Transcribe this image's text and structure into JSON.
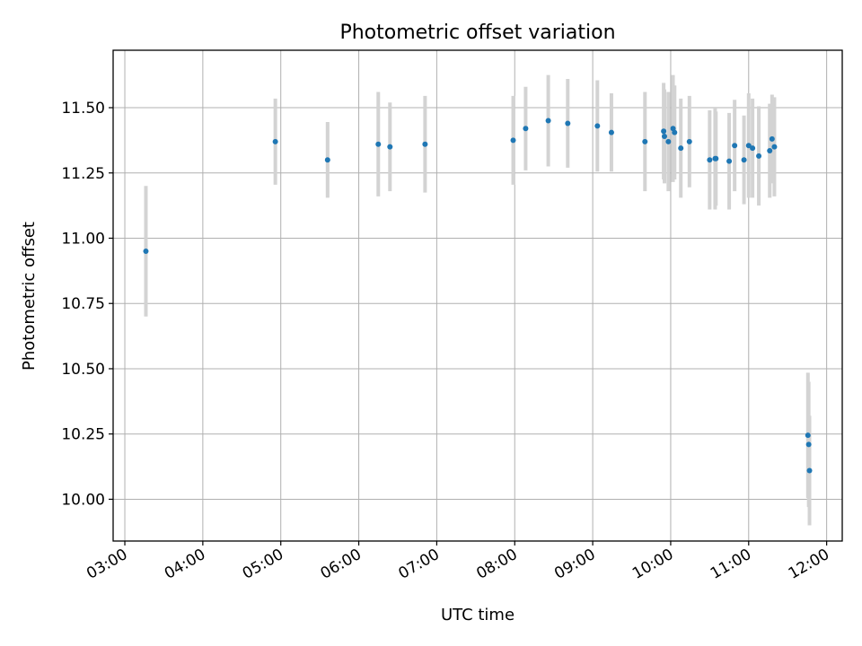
{
  "chart_data": {
    "type": "scatter",
    "title": "Photometric offset variation",
    "xlabel": "UTC time",
    "ylabel": "Photometric offset",
    "x_unit": "hours",
    "xlim": [
      2.85,
      12.2
    ],
    "ylim": [
      9.84,
      11.72
    ],
    "grid": true,
    "x_ticks": [
      {
        "value": 3,
        "label": "03:00"
      },
      {
        "value": 4,
        "label": "04:00"
      },
      {
        "value": 5,
        "label": "05:00"
      },
      {
        "value": 6,
        "label": "06:00"
      },
      {
        "value": 7,
        "label": "07:00"
      },
      {
        "value": 8,
        "label": "08:00"
      },
      {
        "value": 9,
        "label": "09:00"
      },
      {
        "value": 10,
        "label": "10:00"
      },
      {
        "value": 11,
        "label": "11:00"
      },
      {
        "value": 12,
        "label": "12:00"
      }
    ],
    "y_ticks": [
      {
        "value": 10.0,
        "label": "10.00"
      },
      {
        "value": 10.25,
        "label": "10.25"
      },
      {
        "value": 10.5,
        "label": "10.50"
      },
      {
        "value": 10.75,
        "label": "10.75"
      },
      {
        "value": 11.0,
        "label": "11.00"
      },
      {
        "value": 11.25,
        "label": "11.25"
      },
      {
        "value": 11.5,
        "label": "11.50"
      }
    ],
    "series": [
      {
        "marker_color": "#1f77b4",
        "errorbar_color": "#d3d3d3",
        "points": [
          {
            "x": 3.27,
            "y": 10.95,
            "err": 0.25
          },
          {
            "x": 4.93,
            "y": 11.37,
            "err": 0.165
          },
          {
            "x": 5.6,
            "y": 11.3,
            "err": 0.145
          },
          {
            "x": 6.25,
            "y": 11.36,
            "err": 0.2
          },
          {
            "x": 6.4,
            "y": 11.35,
            "err": 0.17
          },
          {
            "x": 6.85,
            "y": 11.36,
            "err": 0.185
          },
          {
            "x": 7.98,
            "y": 11.375,
            "err": 0.17
          },
          {
            "x": 8.14,
            "y": 11.42,
            "err": 0.16
          },
          {
            "x": 8.43,
            "y": 11.45,
            "err": 0.175
          },
          {
            "x": 8.68,
            "y": 11.44,
            "err": 0.17
          },
          {
            "x": 9.06,
            "y": 11.43,
            "err": 0.175
          },
          {
            "x": 9.24,
            "y": 11.405,
            "err": 0.15
          },
          {
            "x": 9.67,
            "y": 11.37,
            "err": 0.19
          },
          {
            "x": 9.91,
            "y": 11.41,
            "err": 0.185
          },
          {
            "x": 9.92,
            "y": 11.39,
            "err": 0.18
          },
          {
            "x": 9.97,
            "y": 11.37,
            "err": 0.19
          },
          {
            "x": 10.03,
            "y": 11.42,
            "err": 0.205
          },
          {
            "x": 10.05,
            "y": 11.405,
            "err": 0.18
          },
          {
            "x": 10.13,
            "y": 11.345,
            "err": 0.19
          },
          {
            "x": 10.24,
            "y": 11.37,
            "err": 0.175
          },
          {
            "x": 10.5,
            "y": 11.3,
            "err": 0.19
          },
          {
            "x": 10.57,
            "y": 11.305,
            "err": 0.195
          },
          {
            "x": 10.58,
            "y": 11.305,
            "err": 0.18
          },
          {
            "x": 10.75,
            "y": 11.295,
            "err": 0.185
          },
          {
            "x": 10.82,
            "y": 11.355,
            "err": 0.175
          },
          {
            "x": 10.94,
            "y": 11.3,
            "err": 0.17
          },
          {
            "x": 11.0,
            "y": 11.355,
            "err": 0.2
          },
          {
            "x": 11.05,
            "y": 11.345,
            "err": 0.19
          },
          {
            "x": 11.13,
            "y": 11.315,
            "err": 0.19
          },
          {
            "x": 11.27,
            "y": 11.335,
            "err": 0.18
          },
          {
            "x": 11.3,
            "y": 11.38,
            "err": 0.17
          },
          {
            "x": 11.33,
            "y": 11.35,
            "err": 0.19
          },
          {
            "x": 11.76,
            "y": 10.245,
            "err": 0.24
          },
          {
            "x": 11.77,
            "y": 10.21,
            "err": 0.24
          },
          {
            "x": 11.78,
            "y": 10.11,
            "err": 0.21
          }
        ]
      }
    ]
  }
}
